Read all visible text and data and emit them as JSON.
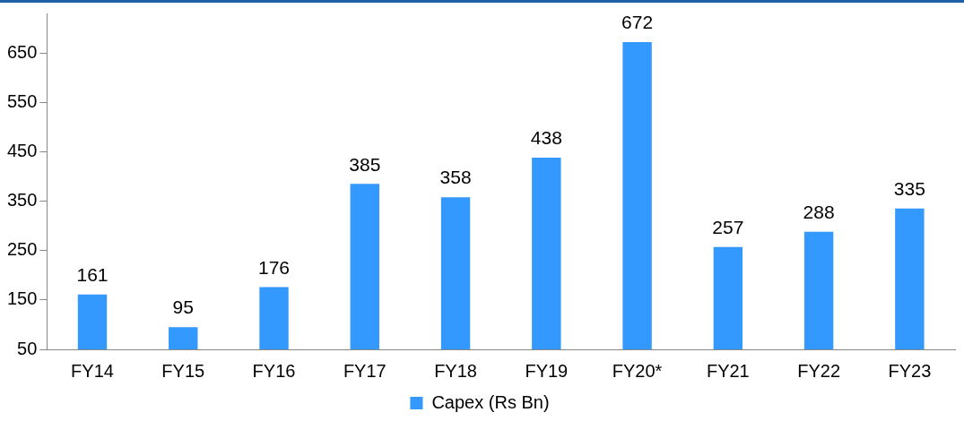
{
  "chart_data": {
    "type": "bar",
    "categories": [
      "FY14",
      "FY15",
      "FY16",
      "FY17",
      "FY18",
      "FY19",
      "FY20*",
      "FY21",
      "FY22",
      "FY23"
    ],
    "series": [
      {
        "name": "Capex (Rs Bn)",
        "color": "#3399ff",
        "values": [
          161,
          95,
          176,
          385,
          358,
          438,
          672,
          257,
          288,
          335
        ]
      }
    ],
    "ylim": [
      50,
      730
    ],
    "yticks": [
      50,
      150,
      250,
      350,
      450,
      550,
      650
    ],
    "grid": false,
    "legend": "bottom",
    "data_labels": true
  }
}
